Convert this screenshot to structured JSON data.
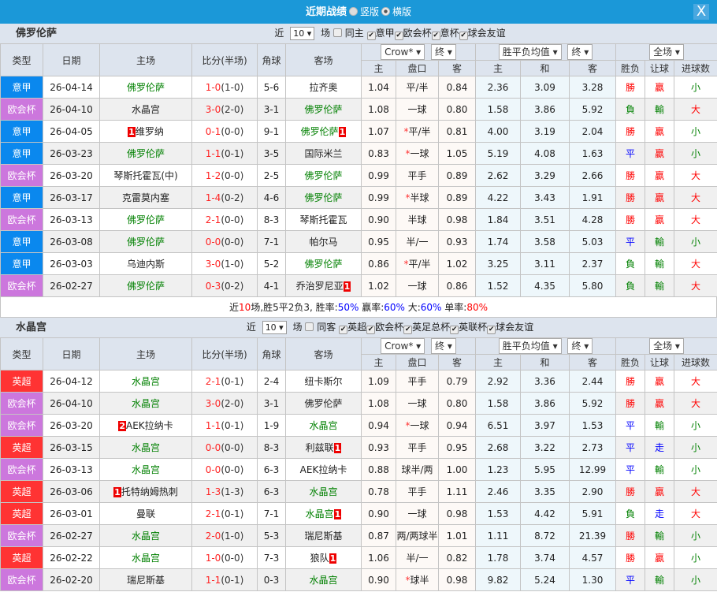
{
  "title": {
    "text": "近期战绩",
    "opt1": "竖版",
    "opt2": "横版",
    "close": "X"
  },
  "colors": {
    "意甲": "#0a88ee",
    "欧会杯": "#cc77dd",
    "英超": "#ff3333",
    "win": "#ff0000",
    "lose": "#008000",
    "draw": "#0000ff"
  },
  "headers": {
    "type": "类型",
    "date": "日期",
    "home": "主场",
    "score": "比分(半场)",
    "corner": "角球",
    "away": "客场",
    "company": "Crow*",
    "final1": "终",
    "odds_type": "胜平负均值",
    "final2": "终",
    "scope": "全场",
    "h": "主",
    "hc": "盘口",
    "a": "客",
    "h2": "主",
    "d": "和",
    "a2": "客",
    "res": "胜负",
    "ah": "让球",
    "goals": "进球数"
  },
  "sections": [
    {
      "team": "佛罗伦萨",
      "near": "近",
      "count": "10",
      "field": "场",
      "same": "同主",
      "leagues": [
        "意甲",
        "欧会杯",
        "意杯",
        "球会友谊"
      ],
      "rows": [
        [
          "意甲",
          "26-04-14",
          "佛罗伦萨",
          1,
          "",
          "1-0",
          "(1-0)",
          "5-6",
          "拉齐奥",
          0,
          "",
          "1.04",
          "平/半",
          0,
          "0.84",
          "2.36",
          "3.09",
          "3.28",
          "勝",
          "贏",
          "小"
        ],
        [
          "欧会杯",
          "26-04-10",
          "水晶宫",
          0,
          "",
          "3-0",
          "(2-0)",
          "3-1",
          "佛罗伦萨",
          1,
          "",
          "1.08",
          "一球",
          0,
          "0.80",
          "1.58",
          "3.86",
          "5.92",
          "負",
          "輸",
          "大"
        ],
        [
          "意甲",
          "26-04-05",
          "维罗纳",
          0,
          "1",
          "0-1",
          "(0-0)",
          "9-1",
          "佛罗伦萨",
          1,
          "1",
          "1.07",
          "平/半",
          1,
          "0.81",
          "4.00",
          "3.19",
          "2.04",
          "勝",
          "贏",
          "小"
        ],
        [
          "意甲",
          "26-03-23",
          "佛罗伦萨",
          1,
          "",
          "1-1",
          "(0-1)",
          "3-5",
          "国际米兰",
          0,
          "",
          "0.83",
          "一球",
          1,
          "1.05",
          "5.19",
          "4.08",
          "1.63",
          "平",
          "贏",
          "小"
        ],
        [
          "欧会杯",
          "26-03-20",
          "琴斯托霍瓦(中)",
          0,
          "",
          "1-2",
          "(0-0)",
          "2-5",
          "佛罗伦萨",
          1,
          "",
          "0.99",
          "平手",
          0,
          "0.89",
          "2.62",
          "3.29",
          "2.66",
          "勝",
          "贏",
          "大"
        ],
        [
          "意甲",
          "26-03-17",
          "克雷莫内塞",
          0,
          "",
          "1-4",
          "(0-2)",
          "4-6",
          "佛罗伦萨",
          1,
          "",
          "0.99",
          "半球",
          1,
          "0.89",
          "4.22",
          "3.43",
          "1.91",
          "勝",
          "贏",
          "大"
        ],
        [
          "欧会杯",
          "26-03-13",
          "佛罗伦萨",
          1,
          "",
          "2-1",
          "(0-0)",
          "8-3",
          "琴斯托霍瓦",
          0,
          "",
          "0.90",
          "半球",
          0,
          "0.98",
          "1.84",
          "3.51",
          "4.28",
          "勝",
          "贏",
          "大"
        ],
        [
          "意甲",
          "26-03-08",
          "佛罗伦萨",
          1,
          "",
          "0-0",
          "(0-0)",
          "7-1",
          "帕尔马",
          0,
          "",
          "0.95",
          "半/一",
          0,
          "0.93",
          "1.74",
          "3.58",
          "5.03",
          "平",
          "輸",
          "小"
        ],
        [
          "意甲",
          "26-03-03",
          "乌迪内斯",
          0,
          "",
          "3-0",
          "(1-0)",
          "5-2",
          "佛罗伦萨",
          1,
          "",
          "0.86",
          "平/半",
          1,
          "1.02",
          "3.25",
          "3.11",
          "2.37",
          "負",
          "輸",
          "大"
        ],
        [
          "欧会杯",
          "26-02-27",
          "佛罗伦萨",
          1,
          "",
          "0-3",
          "(0-2)",
          "4-1",
          "乔治罗尼亚",
          0,
          "1",
          "1.02",
          "一球",
          0,
          "0.86",
          "1.52",
          "4.35",
          "5.80",
          "負",
          "輸",
          "大"
        ]
      ],
      "summary": {
        "p1": "近",
        "n": "10",
        "p2": "场,胜5平2负3, 胜率:",
        "win": "50%",
        "p3": " 赢率:",
        "ah": "60%",
        "p4": " 大:",
        "big": "60%",
        "p5": " 单率:",
        "odd": "80%"
      }
    },
    {
      "team": "水晶宫",
      "near": "近",
      "count": "10",
      "field": "场",
      "same": "同客",
      "leagues": [
        "英超",
        "欧会杯",
        "英足总杯",
        "英联杯",
        "球会友谊"
      ],
      "rows": [
        [
          "英超",
          "26-04-12",
          "水晶宫",
          1,
          "",
          "2-1",
          "(0-1)",
          "2-4",
          "纽卡斯尔",
          0,
          "",
          "1.09",
          "平手",
          0,
          "0.79",
          "2.92",
          "3.36",
          "2.44",
          "勝",
          "贏",
          "大"
        ],
        [
          "欧会杯",
          "26-04-10",
          "水晶宫",
          1,
          "",
          "3-0",
          "(2-0)",
          "3-1",
          "佛罗伦萨",
          0,
          "",
          "1.08",
          "一球",
          0,
          "0.80",
          "1.58",
          "3.86",
          "5.92",
          "勝",
          "贏",
          "大"
        ],
        [
          "欧会杯",
          "26-03-20",
          "AEK拉纳卡",
          0,
          "2",
          "1-1",
          "(0-1)",
          "1-9",
          "水晶宫",
          1,
          "",
          "0.94",
          "一球",
          1,
          "0.94",
          "6.51",
          "3.97",
          "1.53",
          "平",
          "輸",
          "小"
        ],
        [
          "英超",
          "26-03-15",
          "水晶宫",
          1,
          "",
          "0-0",
          "(0-0)",
          "8-3",
          "利兹联",
          0,
          "1",
          "0.93",
          "平手",
          0,
          "0.95",
          "2.68",
          "3.22",
          "2.73",
          "平",
          "走",
          "小"
        ],
        [
          "欧会杯",
          "26-03-13",
          "水晶宫",
          1,
          "",
          "0-0",
          "(0-0)",
          "6-3",
          "AEK拉纳卡",
          0,
          "",
          "0.88",
          "球半/两",
          0,
          "1.00",
          "1.23",
          "5.95",
          "12.99",
          "平",
          "輸",
          "小"
        ],
        [
          "英超",
          "26-03-06",
          "托特纳姆热刺",
          0,
          "1",
          "1-3",
          "(1-3)",
          "6-3",
          "水晶宫",
          1,
          "",
          "0.78",
          "平手",
          0,
          "1.11",
          "2.46",
          "3.35",
          "2.90",
          "勝",
          "贏",
          "大"
        ],
        [
          "英超",
          "26-03-01",
          "曼联",
          0,
          "",
          "2-1",
          "(0-1)",
          "7-1",
          "水晶宫",
          1,
          "1",
          "0.90",
          "一球",
          0,
          "0.98",
          "1.53",
          "4.42",
          "5.91",
          "負",
          "走",
          "大"
        ],
        [
          "欧会杯",
          "26-02-27",
          "水晶宫",
          1,
          "",
          "2-0",
          "(1-0)",
          "5-3",
          "瑞尼斯基",
          0,
          "",
          "0.87",
          "两/两球半",
          0,
          "1.01",
          "1.11",
          "8.72",
          "21.39",
          "勝",
          "輸",
          "小"
        ],
        [
          "英超",
          "26-02-22",
          "水晶宫",
          1,
          "",
          "1-0",
          "(0-0)",
          "7-3",
          "狼队",
          0,
          "1",
          "1.06",
          "半/一",
          0,
          "0.82",
          "1.78",
          "3.74",
          "4.57",
          "勝",
          "贏",
          "小"
        ],
        [
          "欧会杯",
          "26-02-20",
          "瑞尼斯基",
          0,
          "",
          "1-1",
          "(0-1)",
          "0-3",
          "水晶宫",
          1,
          "",
          "0.90",
          "球半",
          1,
          "0.98",
          "9.82",
          "5.24",
          "1.30",
          "平",
          "輸",
          "小"
        ]
      ]
    }
  ]
}
